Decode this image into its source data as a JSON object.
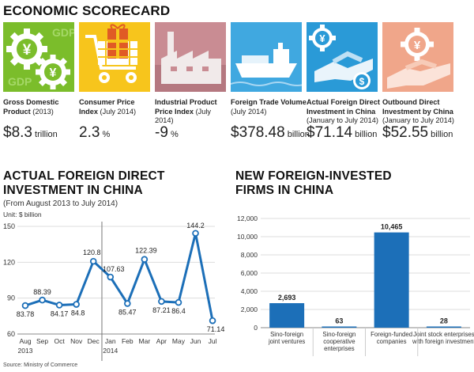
{
  "scorecard": {
    "title": "ECONOMIC SCORECARD",
    "items": [
      {
        "label_bold": "Gross Domestic Product",
        "label_rest": " (2013)",
        "value": "$8.3",
        "unit": " trillion",
        "color": "#7bbd2b"
      },
      {
        "label_bold": "Consumer Price Index",
        "label_rest": " (July 2014)",
        "value": "2.3",
        "unit": " %",
        "color": "#f7c51c"
      },
      {
        "label_bold": "Industrial Product Price Index",
        "label_rest": " (July 2014)",
        "value": "-9",
        "unit": " %",
        "color": "#c98c93"
      },
      {
        "label_bold": "Foreign Trade Volume",
        "label_rest": " (July 2014)",
        "value": "$378.48",
        "unit": " billion",
        "color": "#40a8e0"
      },
      {
        "label_bold": "Actual Foreign Direct Investment in China",
        "label_rest": " (January to July 2014)",
        "value": "$71.14",
        "unit": " billion",
        "color": "#2a9ad7"
      },
      {
        "label_bold": "Outbound Direct Investment by China",
        "label_rest": " (January to July 2014)",
        "value": "$52.55",
        "unit": " billion",
        "color": "#f0a68a"
      }
    ],
    "tile_texts": {
      "gdp": "GDP",
      "yuan": "¥",
      "dollar": "$"
    }
  },
  "fdi_chart": {
    "title_line1": "ACTUAL FOREIGN DIRECT",
    "title_line2": "INVESTMENT IN CHINA",
    "subtitle": "(From August 2013 to July 2014)",
    "unit": "Unit: $ billion",
    "source": "Source: Ministry of Commerce"
  },
  "firms_chart": {
    "title_line1": "NEW FOREIGN-INVESTED",
    "title_line2": "FIRMS IN CHINA"
  },
  "chart_data": [
    {
      "type": "line",
      "title": "ACTUAL FOREIGN DIRECT INVESTMENT IN CHINA",
      "subtitle": "(From August 2013 to July 2014)",
      "ylabel": "Unit: $ billion",
      "categories": [
        "Aug",
        "Sep",
        "Oct",
        "Nov",
        "Dec",
        "Jan",
        "Feb",
        "Mar",
        "Apr",
        "May",
        "Jun",
        "Jul"
      ],
      "year_labels": [
        "2013",
        "2014"
      ],
      "values": [
        83.78,
        88.39,
        84.17,
        84.8,
        120.8,
        107.63,
        85.47,
        122.39,
        87.21,
        86.4,
        144.2,
        71.14
      ],
      "value_labels": [
        "83.78",
        "88.39",
        "84.17",
        "84.8",
        "120.8",
        "107.63",
        "85.47",
        "122.39",
        "87.21",
        "86.4",
        "144.2",
        "71.14"
      ],
      "ylim": [
        60,
        150
      ],
      "yticks": [
        "60",
        "90",
        "120",
        "150"
      ],
      "color": "#1c6fb8"
    },
    {
      "type": "bar",
      "title": "NEW FOREIGN-INVESTED FIRMS IN CHINA",
      "categories": [
        [
          "Sino-foreign",
          "joint ventures"
        ],
        [
          "Sino-foreign",
          "cooperative",
          "enterprises"
        ],
        [
          "Foreign-funded",
          "companies"
        ],
        [
          "Joint stock enterprises",
          "with foreign investment"
        ]
      ],
      "values": [
        2693,
        63,
        10465,
        28
      ],
      "value_labels": [
        "2,693",
        "63",
        "10,465",
        "28"
      ],
      "ylim": [
        0,
        12000
      ],
      "yticks": [
        "0",
        "2,000",
        "4,000",
        "6,000",
        "8,000",
        "10,000",
        "12,000"
      ],
      "color": "#1c6fb8"
    }
  ]
}
